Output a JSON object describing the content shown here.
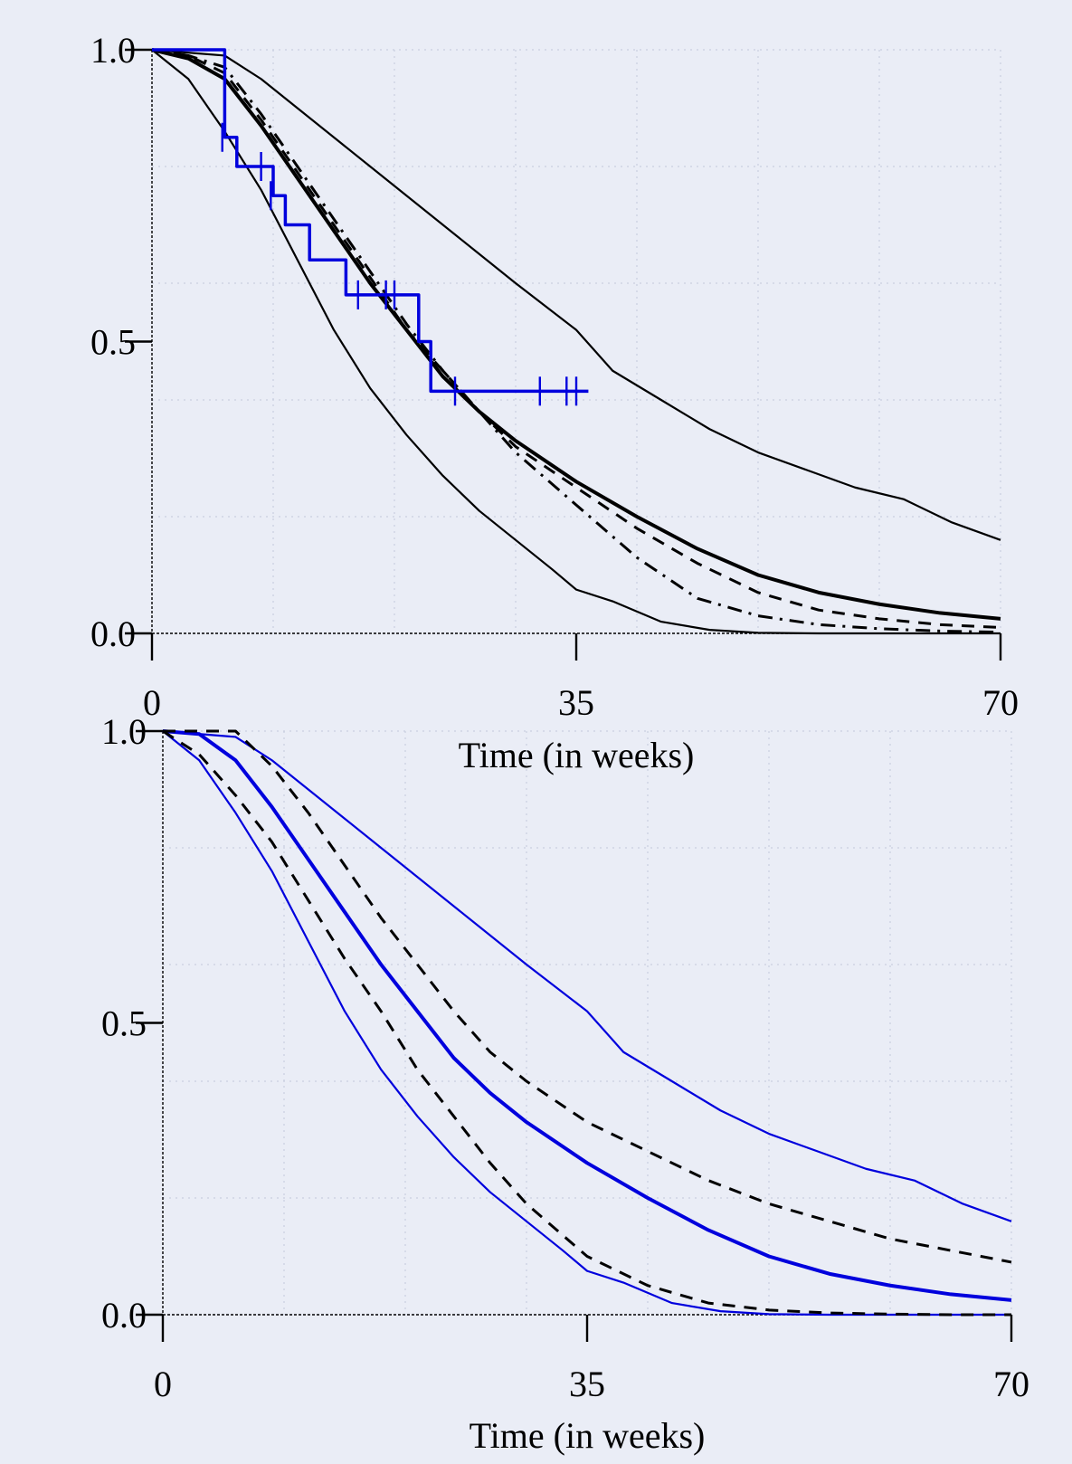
{
  "chart_data": [
    {
      "type": "line",
      "title": "",
      "xlabel": "Time (in weeks)",
      "ylabel": "",
      "xlim": [
        0,
        70
      ],
      "ylim": [
        0,
        1
      ],
      "xticks": [
        0,
        35,
        70
      ],
      "yticks": [
        0.0,
        0.5,
        1.0
      ],
      "xtick_labels": [
        "0",
        "35",
        "70"
      ],
      "ytick_labels": [
        "0.0",
        "0.5",
        "1.0"
      ],
      "grid": true,
      "series": [
        {
          "style": "solid",
          "color": "#000000",
          "kind": "upper-band",
          "x": [
            0,
            6,
            9,
            12,
            15,
            18,
            21,
            24,
            27,
            30,
            35,
            38,
            42,
            46,
            50,
            54,
            58,
            62,
            66,
            70
          ],
          "y": [
            1.0,
            0.99,
            0.95,
            0.9,
            0.85,
            0.8,
            0.75,
            0.7,
            0.65,
            0.6,
            0.52,
            0.45,
            0.4,
            0.35,
            0.31,
            0.28,
            0.25,
            0.23,
            0.19,
            0.16
          ]
        },
        {
          "style": "solid",
          "color": "#000000",
          "kind": "lower-band",
          "x": [
            0,
            3,
            6,
            9,
            12,
            15,
            18,
            21,
            24,
            27,
            30,
            33,
            35,
            38,
            42,
            46,
            50,
            55,
            60,
            70
          ],
          "y": [
            1.0,
            0.95,
            0.86,
            0.76,
            0.64,
            0.52,
            0.42,
            0.34,
            0.27,
            0.21,
            0.16,
            0.11,
            0.075,
            0.055,
            0.02,
            0.006,
            0.001,
            0.0,
            0.0,
            0.0
          ]
        },
        {
          "style": "solid-thick",
          "color": "#000000",
          "kind": "estimate",
          "x": [
            0,
            3,
            6,
            9,
            12,
            15,
            18,
            21,
            24,
            27,
            30,
            35,
            40,
            45,
            50,
            55,
            60,
            65,
            70
          ],
          "y": [
            1.0,
            0.985,
            0.95,
            0.87,
            0.78,
            0.69,
            0.6,
            0.52,
            0.44,
            0.38,
            0.33,
            0.26,
            0.2,
            0.145,
            0.1,
            0.07,
            0.05,
            0.035,
            0.025
          ]
        },
        {
          "style": "dashed",
          "color": "#000000",
          "x": [
            0,
            3,
            6,
            9,
            12,
            15,
            18,
            21,
            24,
            27,
            30,
            35,
            40,
            45,
            50,
            55,
            60,
            65,
            70
          ],
          "y": [
            1.0,
            0.99,
            0.96,
            0.88,
            0.79,
            0.7,
            0.61,
            0.52,
            0.45,
            0.38,
            0.32,
            0.25,
            0.18,
            0.12,
            0.07,
            0.04,
            0.025,
            0.015,
            0.01
          ]
        },
        {
          "style": "dash-dot",
          "color": "#000000",
          "x": [
            0,
            3,
            6,
            9,
            12,
            15,
            18,
            21,
            24,
            27,
            30,
            35,
            40,
            45,
            50,
            55,
            60,
            65,
            70
          ],
          "y": [
            1.0,
            0.99,
            0.97,
            0.89,
            0.8,
            0.71,
            0.62,
            0.53,
            0.45,
            0.38,
            0.31,
            0.22,
            0.13,
            0.06,
            0.03,
            0.015,
            0.008,
            0.004,
            0.002
          ]
        },
        {
          "style": "step",
          "color": "#0000dd",
          "kind": "kaplan-meier",
          "x": [
            0,
            6,
            7,
            10,
            11,
            13,
            16,
            22,
            23,
            36
          ],
          "y": [
            1.0,
            0.85,
            0.8,
            0.75,
            0.7,
            0.64,
            0.58,
            0.5,
            0.415,
            0.415
          ],
          "censored_x": [
            5.8,
            9.0,
            9.8,
            17.0,
            19.3,
            20.0,
            25.0,
            32.0,
            34.2,
            35.0
          ],
          "censored_y": [
            0.85,
            0.8,
            0.75,
            0.58,
            0.58,
            0.58,
            0.415,
            0.415,
            0.415,
            0.415
          ]
        }
      ]
    },
    {
      "type": "line",
      "title": "",
      "xlabel": "Time (in weeks)",
      "ylabel": "",
      "xlim": [
        0,
        70
      ],
      "ylim": [
        0,
        1
      ],
      "xticks": [
        0,
        35,
        70
      ],
      "yticks": [
        0.0,
        0.5,
        1.0
      ],
      "xtick_labels": [
        "0",
        "35",
        "70"
      ],
      "ytick_labels": [
        "0.0",
        "0.5",
        "1.0"
      ],
      "grid": true,
      "series": [
        {
          "style": "solid",
          "color": "#0000dd",
          "kind": "upper-band",
          "x": [
            0,
            6,
            9,
            12,
            15,
            18,
            21,
            24,
            27,
            30,
            35,
            38,
            42,
            46,
            50,
            54,
            58,
            62,
            66,
            70
          ],
          "y": [
            1.0,
            0.99,
            0.95,
            0.9,
            0.85,
            0.8,
            0.75,
            0.7,
            0.65,
            0.6,
            0.52,
            0.45,
            0.4,
            0.35,
            0.31,
            0.28,
            0.25,
            0.23,
            0.19,
            0.16
          ]
        },
        {
          "style": "solid",
          "color": "#0000dd",
          "kind": "lower-band",
          "x": [
            0,
            3,
            6,
            9,
            12,
            15,
            18,
            21,
            24,
            27,
            30,
            33,
            35,
            38,
            42,
            46,
            50,
            55,
            60,
            70
          ],
          "y": [
            1.0,
            0.95,
            0.86,
            0.76,
            0.64,
            0.52,
            0.42,
            0.34,
            0.27,
            0.21,
            0.16,
            0.11,
            0.075,
            0.055,
            0.02,
            0.006,
            0.001,
            0.0,
            0.0,
            0.0
          ]
        },
        {
          "style": "solid-thick",
          "color": "#0000dd",
          "kind": "estimate",
          "x": [
            0,
            3,
            6,
            9,
            12,
            15,
            18,
            21,
            24,
            27,
            30,
            35,
            40,
            45,
            50,
            55,
            60,
            65,
            70
          ],
          "y": [
            1.0,
            0.995,
            0.95,
            0.87,
            0.78,
            0.69,
            0.6,
            0.52,
            0.44,
            0.38,
            0.33,
            0.26,
            0.2,
            0.145,
            0.1,
            0.07,
            0.05,
            0.035,
            0.025
          ]
        },
        {
          "style": "dashed",
          "color": "#000000",
          "kind": "upper",
          "x": [
            0,
            6,
            9,
            12,
            15,
            18,
            21,
            24,
            27,
            30,
            35,
            40,
            45,
            50,
            55,
            60,
            65,
            70
          ],
          "y": [
            1.0,
            1.0,
            0.94,
            0.86,
            0.77,
            0.68,
            0.6,
            0.52,
            0.45,
            0.4,
            0.33,
            0.28,
            0.23,
            0.19,
            0.16,
            0.13,
            0.11,
            0.09
          ]
        },
        {
          "style": "dashed",
          "color": "#000000",
          "kind": "lower",
          "x": [
            0,
            3,
            6,
            9,
            12,
            15,
            18,
            21,
            24,
            27,
            30,
            35,
            40,
            45,
            50,
            55,
            60,
            65,
            70
          ],
          "y": [
            1.0,
            0.96,
            0.89,
            0.81,
            0.71,
            0.61,
            0.52,
            0.42,
            0.34,
            0.26,
            0.19,
            0.1,
            0.05,
            0.02,
            0.008,
            0.003,
            0.001,
            0.0,
            0.0
          ]
        }
      ]
    }
  ]
}
